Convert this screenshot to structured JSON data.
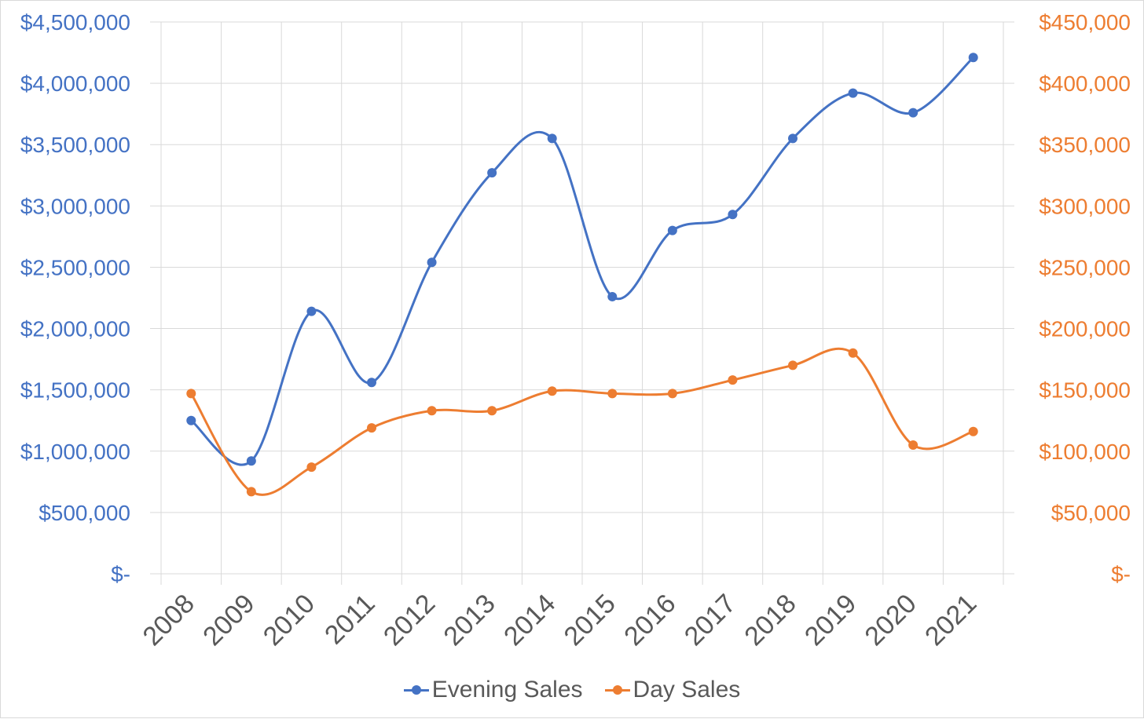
{
  "chart_data": {
    "type": "line",
    "smoothed": true,
    "categories": [
      "2008",
      "2009",
      "2010",
      "2011",
      "2012",
      "2013",
      "2014",
      "2015",
      "2016",
      "2017",
      "2018",
      "2019",
      "2020",
      "2021"
    ],
    "series": [
      {
        "name": "Evening Sales",
        "axis": "left",
        "color": "#4472C4",
        "values": [
          1250000,
          920000,
          2140000,
          1560000,
          2540000,
          3270000,
          3550000,
          2260000,
          2800000,
          2930000,
          3550000,
          3920000,
          3760000,
          4210000
        ]
      },
      {
        "name": "Day Sales",
        "axis": "right",
        "color": "#ED7D31",
        "values": [
          147000,
          67000,
          87000,
          119000,
          133000,
          133000,
          149000,
          147000,
          147000,
          158000,
          170000,
          180000,
          105000,
          116000
        ]
      }
    ],
    "y_left": {
      "ylim": [
        0,
        4500000
      ],
      "tick_labels": [
        "$-",
        "$500,000",
        "$1,000,000",
        "$1,500,000",
        "$2,000,000",
        "$2,500,000",
        "$3,000,000",
        "$3,500,000",
        "$4,000,000",
        "$4,500,000"
      ],
      "color": "#4472C4"
    },
    "y_right": {
      "ylim": [
        0,
        450000
      ],
      "tick_labels": [
        "$-",
        "$50,000",
        "$100,000",
        "$150,000",
        "$200,000",
        "$250,000",
        "$300,000",
        "$350,000",
        "$400,000",
        "$450,000"
      ],
      "color": "#ED7D31"
    },
    "grid": true,
    "legend": {
      "position": "bottom",
      "items": [
        {
          "label": "Evening Sales",
          "color": "#4472C4"
        },
        {
          "label": "Day Sales",
          "color": "#ED7D31"
        }
      ]
    },
    "x_tick_color": "#595959",
    "grid_color": "#d9d9d9"
  }
}
